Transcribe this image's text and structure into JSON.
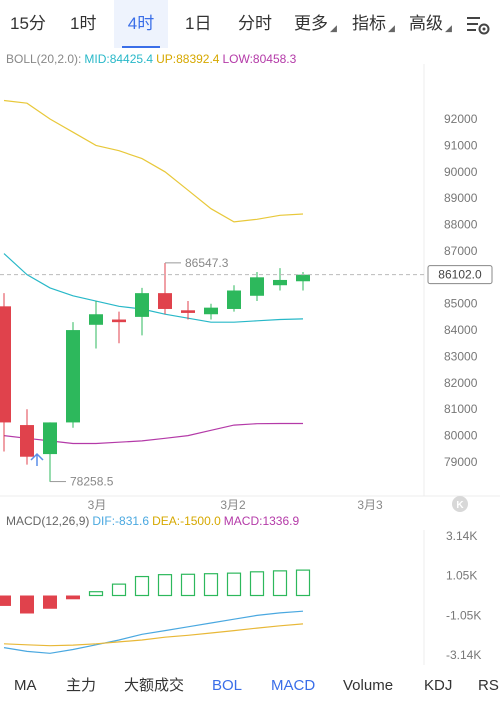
{
  "tabs": [
    {
      "label": "15分"
    },
    {
      "label": "1时"
    },
    {
      "label": "4时"
    },
    {
      "label": "1日"
    },
    {
      "label": "分时"
    },
    {
      "label": "更多"
    },
    {
      "label": "指标"
    },
    {
      "label": "高级"
    }
  ],
  "toolbar_icon": "chart-settings-icon",
  "boll": {
    "label": "BOLL(20,2.0):",
    "mid": "MID:84425.4",
    "up": "UP:88392.4",
    "low": "LOW:80458.3"
  },
  "price_axis": [
    "92000",
    "91000",
    "90000",
    "89000",
    "88000",
    "87000",
    "86000",
    "85000",
    "84000",
    "83000",
    "82000",
    "81000",
    "80000",
    "79000"
  ],
  "current_price": "86102.0",
  "high_label": "86547.3",
  "low_label": "78258.5",
  "dates": [
    "3月",
    "3月2",
    "3月3"
  ],
  "macd": {
    "label": "MACD(12,26,9)",
    "dif": "DIF:-831.6",
    "dea": "DEA:-1500.0",
    "macd": "MACD:1336.9",
    "axis": [
      "3.14K",
      "1.05K",
      "-1.05K",
      "-3.14K"
    ]
  },
  "bottom_tabs": [
    {
      "label": "MA"
    },
    {
      "label": "主力"
    },
    {
      "label": "大额成交"
    },
    {
      "label": "BOL"
    },
    {
      "label": "MACD"
    },
    {
      "label": "Volume"
    },
    {
      "label": "KDJ"
    },
    {
      "label": "RSI"
    }
  ],
  "colors": {
    "up": "#2db85c",
    "down": "#e0424c",
    "mid": "#28b8c8",
    "upper": "#e8c83a",
    "lower": "#b43aa8",
    "accent": "#3a6ee8",
    "dif": "#4aa8e0",
    "dea": "#e8b838"
  },
  "chart_data": {
    "type": "candlestick",
    "price_range": [
      78400,
      92900
    ],
    "candles": [
      {
        "o": 84900,
        "h": 85400,
        "l": 79400,
        "c": 80500
      },
      {
        "o": 80400,
        "h": 81000,
        "l": 78900,
        "c": 79200
      },
      {
        "o": 79300,
        "h": 80500,
        "l": 78250,
        "c": 80500
      },
      {
        "o": 80500,
        "h": 84300,
        "l": 80300,
        "c": 84000
      },
      {
        "o": 84200,
        "h": 85100,
        "l": 83300,
        "c": 84600
      },
      {
        "o": 84400,
        "h": 84700,
        "l": 83500,
        "c": 84300
      },
      {
        "o": 84500,
        "h": 85600,
        "l": 83800,
        "c": 85400
      },
      {
        "o": 85400,
        "h": 86540,
        "l": 84600,
        "c": 84800
      },
      {
        "o": 84750,
        "h": 85100,
        "l": 84400,
        "c": 84650
      },
      {
        "o": 84600,
        "h": 85000,
        "l": 84400,
        "c": 84850
      },
      {
        "o": 84800,
        "h": 85700,
        "l": 84700,
        "c": 85500
      },
      {
        "o": 85300,
        "h": 86200,
        "l": 85100,
        "c": 86000
      },
      {
        "o": 85700,
        "h": 86350,
        "l": 85500,
        "c": 85900
      },
      {
        "o": 85850,
        "h": 86200,
        "l": 85500,
        "c": 86100
      }
    ],
    "boll_up": [
      92700,
      92600,
      92000,
      91500,
      91000,
      90800,
      90500,
      90000,
      89300,
      88600,
      88100,
      88200,
      88350,
      88400
    ],
    "boll_mid": [
      86900,
      86100,
      85600,
      85300,
      85100,
      84900,
      84800,
      84600,
      84450,
      84300,
      84300,
      84350,
      84400,
      84425
    ],
    "boll_low": [
      80000,
      79900,
      79800,
      79700,
      79700,
      79750,
      79800,
      79900,
      80000,
      80200,
      80400,
      80450,
      80460,
      80458
    ],
    "macd_hist": [
      -0.55,
      -0.95,
      -0.7,
      -0.2,
      0.2,
      0.6,
      1.0,
      1.1,
      1.12,
      1.15,
      1.18,
      1.25,
      1.3,
      1.34
    ],
    "dif": [
      -2.75,
      -2.95,
      -3.05,
      -2.85,
      -2.6,
      -2.35,
      -2.05,
      -1.85,
      -1.65,
      -1.45,
      -1.25,
      -1.05,
      -0.92,
      -0.83
    ],
    "dea": [
      -2.55,
      -2.6,
      -2.65,
      -2.62,
      -2.55,
      -2.45,
      -2.35,
      -2.2,
      -2.1,
      -1.98,
      -1.85,
      -1.72,
      -1.6,
      -1.5
    ],
    "macd_range": [
      -3.3,
      3.5
    ]
  }
}
